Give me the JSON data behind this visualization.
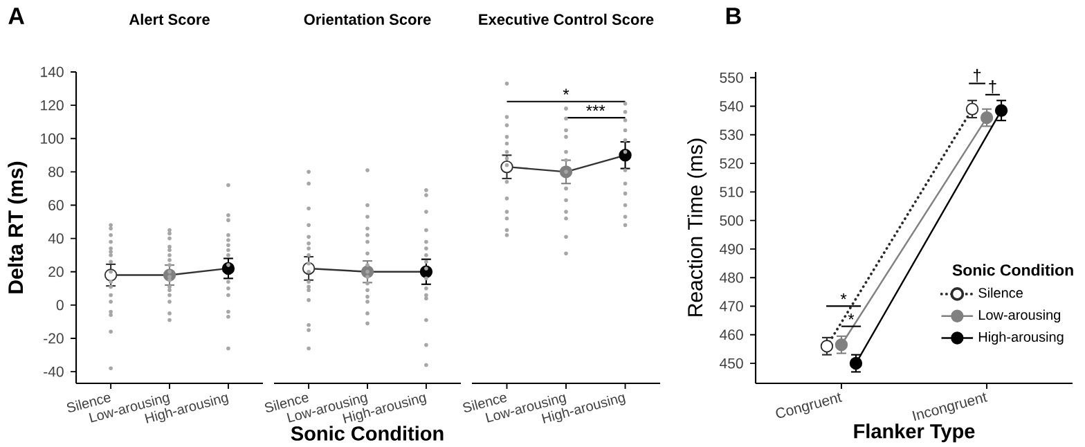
{
  "chart_data": [
    {
      "type": "line",
      "title": "Alert Score",
      "ylabel": "Delta RT (ms)",
      "categories": [
        "Silence",
        "Low-arousing",
        "High-arousing"
      ],
      "ylim": [
        -47,
        140
      ],
      "yticks": [
        -40,
        -20,
        0,
        20,
        40,
        60,
        80,
        100,
        120,
        140
      ],
      "marker": "circle",
      "annotations": [
        "A"
      ],
      "series": [
        {
          "color": "#333333",
          "colors": [
            "#ffffff",
            "#808080",
            "#000000"
          ],
          "values": [
            18,
            18,
            22
          ],
          "errors": [
            6.5,
            6,
            6
          ]
        },
        {
          "type": "scatter",
          "color": "#a6a6a6",
          "x": [
            "Silence",
            "Silence",
            "Silence",
            "Silence",
            "Silence",
            "Silence",
            "Silence",
            "Silence",
            "Silence",
            "Silence",
            "Silence",
            "Silence",
            "Silence",
            "Silence",
            "Silence",
            "Silence",
            "Silence",
            "Low-arousing",
            "Low-arousing",
            "Low-arousing",
            "Low-arousing",
            "Low-arousing",
            "Low-arousing",
            "Low-arousing",
            "Low-arousing",
            "Low-arousing",
            "Low-arousing",
            "Low-arousing",
            "Low-arousing",
            "Low-arousing",
            "Low-arousing",
            "Low-arousing",
            "Low-arousing",
            "Low-arousing",
            "High-arousing",
            "High-arousing",
            "High-arousing",
            "High-arousing",
            "High-arousing",
            "High-arousing",
            "High-arousing",
            "High-arousing",
            "High-arousing",
            "High-arousing",
            "High-arousing",
            "High-arousing",
            "High-arousing",
            "High-arousing",
            "High-arousing"
          ],
          "values": [
            48,
            46,
            42,
            38,
            34,
            32,
            30,
            26,
            20,
            14,
            11,
            6,
            2,
            -6,
            -4,
            -16,
            -38,
            45,
            43,
            40,
            35,
            33,
            30,
            27,
            24,
            20,
            17,
            15,
            11,
            9,
            6,
            2,
            -5,
            -9,
            72,
            54,
            51,
            42,
            39,
            36,
            33,
            30,
            24,
            14,
            10,
            6,
            -4,
            -7,
            -26
          ]
        }
      ]
    },
    {
      "type": "line",
      "title": "Orientation Score",
      "xlabel": "Sonic Condition",
      "categories": [
        "Silence",
        "Low-arousing",
        "High-arousing"
      ],
      "ylim": [
        -47,
        140
      ],
      "yticks": [
        -40,
        -20,
        0,
        20,
        40,
        60,
        80,
        100,
        120,
        140
      ],
      "tick_labels": "x",
      "marker": "circle",
      "series": [
        {
          "color": "#333333",
          "colors": [
            "#ffffff",
            "#808080",
            "#000000"
          ],
          "values": [
            22,
            20,
            20
          ],
          "errors": [
            7,
            6.5,
            7.5
          ]
        },
        {
          "type": "scatter",
          "color": "#a6a6a6",
          "x": [
            "Silence",
            "Silence",
            "Silence",
            "Silence",
            "Silence",
            "Silence",
            "Silence",
            "Silence",
            "Silence",
            "Silence",
            "Silence",
            "Silence",
            "Silence",
            "Silence",
            "Silence",
            "Silence",
            "Silence",
            "Low-arousing",
            "Low-arousing",
            "Low-arousing",
            "Low-arousing",
            "Low-arousing",
            "Low-arousing",
            "Low-arousing",
            "Low-arousing",
            "Low-arousing",
            "Low-arousing",
            "Low-arousing",
            "Low-arousing",
            "Low-arousing",
            "Low-arousing",
            "Low-arousing",
            "Low-arousing",
            "High-arousing",
            "High-arousing",
            "High-arousing",
            "High-arousing",
            "High-arousing",
            "High-arousing",
            "High-arousing",
            "High-arousing",
            "High-arousing",
            "High-arousing",
            "High-arousing",
            "High-arousing",
            "High-arousing",
            "High-arousing",
            "High-arousing",
            "High-arousing"
          ],
          "values": [
            80,
            73,
            58,
            48,
            41,
            37,
            34,
            30,
            25,
            20,
            14,
            11,
            9,
            3,
            -12,
            -15,
            -26,
            81,
            60,
            53,
            46,
            42,
            38,
            31,
            24,
            20,
            17,
            13,
            9,
            5,
            2,
            -5,
            -11,
            69,
            66,
            56,
            45,
            38,
            34,
            30,
            26,
            22,
            16,
            10,
            6,
            4,
            -9,
            -24,
            -36
          ]
        }
      ]
    },
    {
      "type": "line",
      "title": "Executive Control Score",
      "categories": [
        "Silence",
        "Low-arousing",
        "High-arousing"
      ],
      "ylim": [
        -47,
        140
      ],
      "yticks": [
        -40,
        -20,
        0,
        20,
        40,
        60,
        80,
        100,
        120,
        140
      ],
      "tick_labels": "x",
      "marker": "circle",
      "annotations": [
        "*",
        "***"
      ],
      "series": [
        {
          "color": "#333333",
          "colors": [
            "#ffffff",
            "#808080",
            "#000000"
          ],
          "values": [
            83,
            80,
            90
          ],
          "errors": [
            7,
            7,
            8
          ]
        },
        {
          "type": "scatter",
          "color": "#a6a6a6",
          "x": [
            "Silence",
            "Silence",
            "Silence",
            "Silence",
            "Silence",
            "Silence",
            "Silence",
            "Silence",
            "Silence",
            "Silence",
            "Silence",
            "Silence",
            "Silence",
            "Silence",
            "Low-arousing",
            "Low-arousing",
            "Low-arousing",
            "Low-arousing",
            "Low-arousing",
            "Low-arousing",
            "Low-arousing",
            "Low-arousing",
            "Low-arousing",
            "Low-arousing",
            "Low-arousing",
            "Low-arousing",
            "Low-arousing",
            "High-arousing",
            "High-arousing",
            "High-arousing",
            "High-arousing",
            "High-arousing",
            "High-arousing",
            "High-arousing",
            "High-arousing",
            "High-arousing",
            "High-arousing",
            "High-arousing",
            "High-arousing"
          ],
          "values": [
            133,
            113,
            108,
            101,
            97,
            92,
            88,
            84,
            74,
            64,
            56,
            52,
            45,
            42,
            118,
            112,
            105,
            101,
            92,
            87,
            80,
            70,
            63,
            56,
            52,
            41,
            31,
            121,
            116,
            111,
            105,
            99,
            92,
            81,
            73,
            67,
            60,
            53,
            48
          ]
        }
      ]
    },
    {
      "type": "line",
      "xlabel": "Flanker Type",
      "ylabel": "Reaction Time (ms)",
      "categories": [
        "Congruent",
        "Incongruent"
      ],
      "ylim": [
        443,
        552
      ],
      "yticks": [
        450,
        460,
        470,
        480,
        490,
        500,
        510,
        520,
        530,
        540,
        550
      ],
      "marker": "circle",
      "legend": "right",
      "legend_title": "Sonic Condition",
      "annotations": [
        "B",
        "*",
        "*",
        "†",
        "†"
      ],
      "series": [
        {
          "name": "Silence",
          "color": "#2b2b2b",
          "colors": [
            "#ffffff",
            "#ffffff"
          ],
          "line_style": "dotted",
          "values": [
            456,
            539
          ],
          "errors": [
            3,
            3
          ]
        },
        {
          "name": "Low-arousing",
          "color": "#808080",
          "line_style": "solid",
          "values": [
            456.5,
            536
          ],
          "errors": [
            3,
            3
          ]
        },
        {
          "name": "High-arousing",
          "color": "#000000",
          "line_style": "solid",
          "values": [
            450,
            538.5
          ],
          "errors": [
            3,
            3.5
          ]
        }
      ]
    }
  ]
}
